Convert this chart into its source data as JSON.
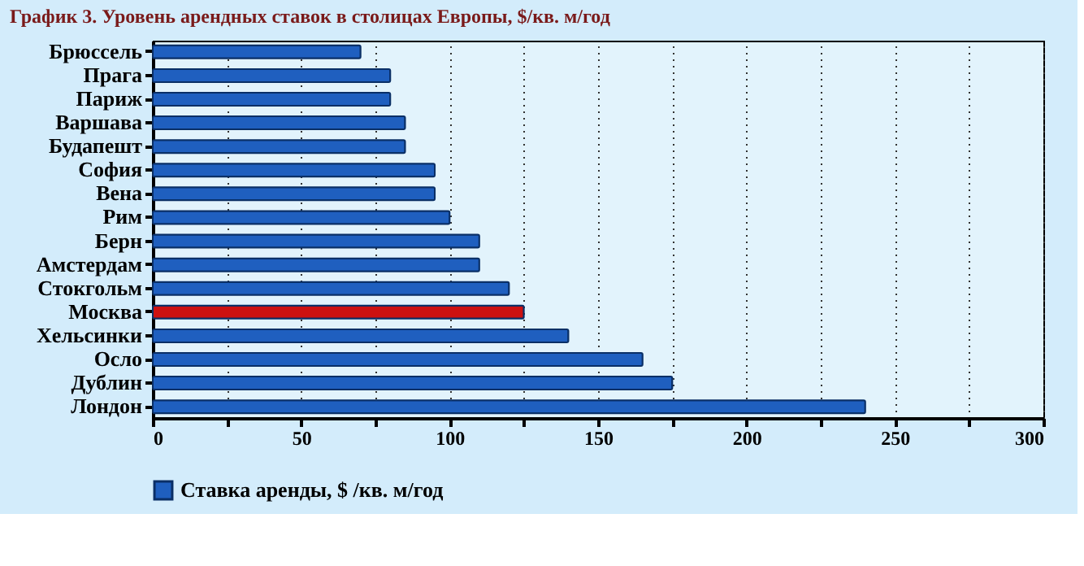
{
  "chart_data": {
    "type": "bar",
    "orientation": "horizontal",
    "title": "График 3. Уровень арендных ставок в столицах Европы, $/кв. м/год",
    "categories": [
      "Брюссель",
      "Прага",
      "Париж",
      "Варшава",
      "Будапешт",
      "София",
      "Вена",
      "Рим",
      "Берн",
      "Амстердам",
      "Стокгольм",
      "Москва",
      "Хельсинки",
      "Осло",
      "Дублин",
      "Лондон"
    ],
    "series": [
      {
        "name": "Ставка аренды, $ /кв. м/год",
        "color": "#1f5fbf",
        "values": [
          70,
          80,
          80,
          85,
          85,
          95,
          95,
          100,
          110,
          110,
          120,
          125,
          140,
          165,
          175,
          240
        ],
        "colors": [
          "#1f5fbf",
          "#1f5fbf",
          "#1f5fbf",
          "#1f5fbf",
          "#1f5fbf",
          "#1f5fbf",
          "#1f5fbf",
          "#1f5fbf",
          "#1f5fbf",
          "#1f5fbf",
          "#1f5fbf",
          "#cc1111",
          "#1f5fbf",
          "#1f5fbf",
          "#1f5fbf",
          "#1f5fbf"
        ]
      }
    ],
    "xlim": [
      0,
      300
    ],
    "xticks": [
      0,
      {
        "value": 25,
        "label": null
      },
      50,
      {
        "value": 75,
        "label": null
      },
      100,
      {
        "value": 125,
        "label": null
      },
      150,
      {
        "value": 175,
        "label": null
      },
      200,
      {
        "value": 225,
        "label": null
      },
      250,
      {
        "value": 275,
        "label": null
      },
      300
    ],
    "grid": "x",
    "legend": "bottom"
  }
}
